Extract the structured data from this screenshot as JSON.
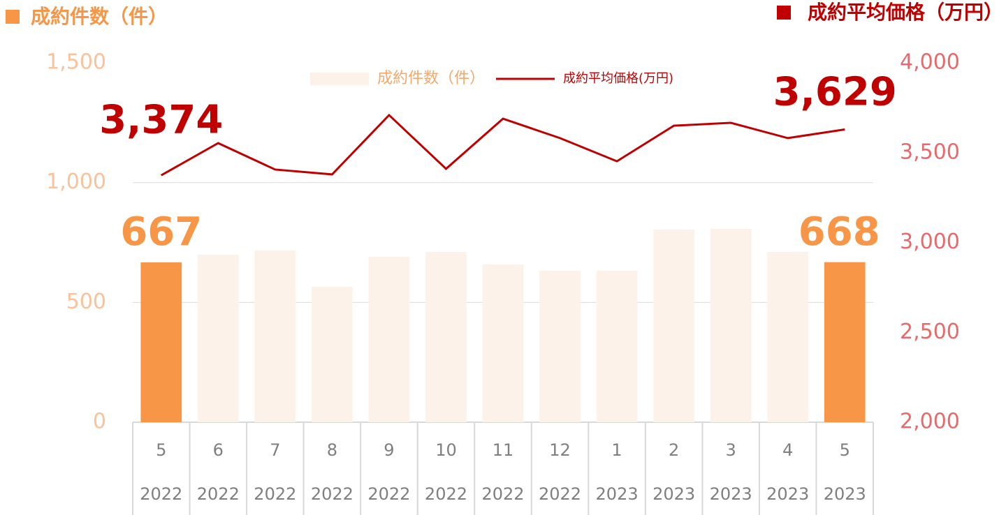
{
  "chart_data": {
    "type": "combo",
    "title": "成約件数（件）",
    "title_color": "#f79646",
    "y2_title": "成約平均価格（万円）",
    "y2_title_color": "#c00000",
    "categories": [
      "5",
      "6",
      "7",
      "8",
      "9",
      "10",
      "11",
      "12",
      "1",
      "2",
      "3",
      "4",
      "5"
    ],
    "category_years": [
      "2022",
      "2022",
      "2022",
      "2022",
      "2022",
      "2022",
      "2022",
      "2022",
      "2023",
      "2023",
      "2023",
      "2023",
      "2023"
    ],
    "series": [
      {
        "name": "成約件数（件）",
        "type": "bar",
        "color": "#fdf2ea",
        "legend_text_color": "#f5a86a",
        "colors": [
          "#f79646",
          "#fdf2ea",
          "#fdf2ea",
          "#fdf2ea",
          "#fdf2ea",
          "#fdf2ea",
          "#fdf2ea",
          "#fdf2ea",
          "#fdf2ea",
          "#fdf2ea",
          "#fdf2ea",
          "#fdf2ea",
          "#f79646"
        ],
        "values": [
          667,
          699,
          717,
          565,
          690,
          711,
          658,
          632,
          632,
          804,
          807,
          711,
          668
        ],
        "value_labels": [
          "667",
          null,
          null,
          null,
          null,
          null,
          null,
          null,
          null,
          null,
          null,
          null,
          "668"
        ],
        "label_color": "#f79646"
      },
      {
        "name": "成約平均価格(万円)",
        "type": "line",
        "axis": "y2",
        "color": "#c00000",
        "legend_text_color": "#c00000",
        "values": [
          3374,
          3553,
          3406,
          3379,
          3709,
          3410,
          3689,
          3581,
          3452,
          3650,
          3666,
          3581,
          3629
        ],
        "value_labels": [
          "3,374",
          null,
          null,
          null,
          null,
          null,
          null,
          null,
          null,
          null,
          null,
          null,
          "3,629"
        ],
        "label_color": "#c00000"
      }
    ],
    "ylim": [
      0,
      1500
    ],
    "yticks": [
      0,
      500,
      {
        "value": 1000,
        "label": "1,000"
      },
      {
        "value": 1500,
        "label": "1,500"
      }
    ],
    "y2lim": [
      2000,
      4000
    ],
    "y2ticks": [
      {
        "value": 2000,
        "label": "2,000"
      },
      {
        "value": 2500,
        "label": "2,500"
      },
      {
        "value": 3000,
        "label": "3,000"
      },
      {
        "value": 3500,
        "label": "3,500"
      },
      {
        "value": 4000,
        "label": "4,000"
      }
    ],
    "ytick_color": "#f9c29a",
    "y2tick_color": "#e8696b",
    "grid": true
  }
}
